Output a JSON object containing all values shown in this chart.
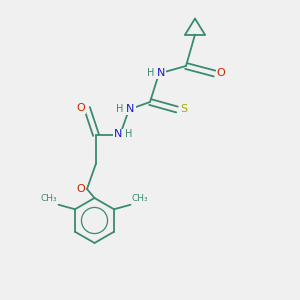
{
  "background_color": "#f0f0f0",
  "atom_colors": {
    "C": "#3a8a70",
    "N": "#1a1acc",
    "O": "#cc2200",
    "S": "#aaaa00",
    "H": "#3a8a70"
  },
  "bond_color": "#3a8a70",
  "font_size_atoms": 8,
  "font_size_small": 7
}
